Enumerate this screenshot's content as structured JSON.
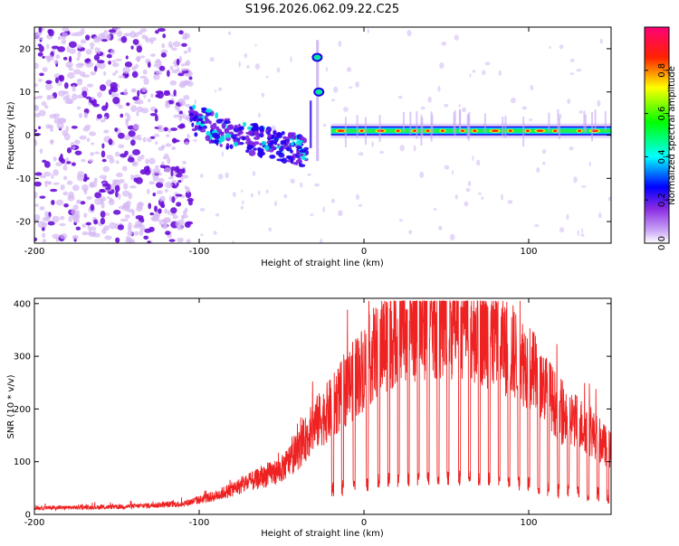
{
  "title": "S196.2026.062.09.22.C25",
  "chart_data": [
    {
      "type": "heatmap",
      "xlabel": "Height of straight line (km)",
      "ylabel": "Frequency (Hz)",
      "xlim": [
        -200,
        150
      ],
      "ylim": [
        -25,
        25
      ],
      "xticks": [
        -200,
        -100,
        0,
        100
      ],
      "yticks": [
        -20,
        -10,
        0,
        10,
        20
      ],
      "colorbar": {
        "label": "Normalized spectral amplitude",
        "ticks": [
          "0.0",
          "0.2",
          "0.4",
          "0.6",
          "0.8"
        ],
        "tick_values": [
          0,
          0.2,
          0.4,
          0.6,
          0.8
        ],
        "range": [
          0,
          1
        ],
        "colors": [
          "#ffffff",
          "#8a2be2",
          "#0000ff",
          "#00ffff",
          "#00ff00",
          "#ffff00",
          "#ff0000",
          "#ff0066"
        ]
      },
      "features": [
        {
          "name": "diffuse noise",
          "x_range": [
            -200,
            -105
          ],
          "y_range": [
            -25,
            25
          ],
          "amplitude": 0.15
        },
        {
          "name": "descending trace",
          "x": [
            -105,
            -80,
            -55,
            -35
          ],
          "y": [
            4,
            0,
            -2,
            -4
          ],
          "amplitude": 0.45
        },
        {
          "name": "upper spots",
          "x": [
            -30,
            -29
          ],
          "y": [
            18,
            10
          ],
          "amplitude": 0.6
        },
        {
          "name": "carrier line",
          "x_range": [
            -20,
            150
          ],
          "y": 1,
          "amplitude": 0.9
        }
      ]
    },
    {
      "type": "line",
      "xlabel": "Height of straight line (km)",
      "ylabel": "SNR (10 * v/v)",
      "xlim": [
        -200,
        150
      ],
      "ylim": [
        0,
        410
      ],
      "xticks": [
        -200,
        -100,
        0,
        100
      ],
      "yticks": [
        0,
        100,
        200,
        300,
        400
      ],
      "series": [
        {
          "name": "SNR",
          "color": "#ee2222",
          "envelope_x": [
            -200,
            -150,
            -110,
            -90,
            -70,
            -50,
            -40,
            -30,
            -20,
            -10,
            0,
            10,
            20,
            30,
            40,
            50,
            60,
            70,
            80,
            90,
            100,
            110,
            120,
            130,
            140,
            150
          ],
          "envelope_mean": [
            12,
            14,
            20,
            35,
            60,
            85,
            120,
            170,
            200,
            240,
            280,
            320,
            345,
            355,
            360,
            362,
            360,
            350,
            330,
            310,
            280,
            240,
            190,
            175,
            150,
            120
          ],
          "dropout_x": [
            -19,
            -13,
            -6,
            2,
            9,
            15,
            21,
            27,
            33,
            39,
            45,
            51,
            58,
            64,
            70,
            76,
            82,
            88,
            94,
            100,
            106,
            112,
            118,
            124,
            130,
            136,
            142,
            148
          ]
        }
      ]
    }
  ]
}
